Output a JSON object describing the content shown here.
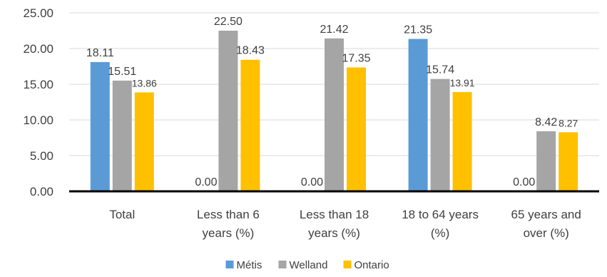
{
  "chart_data": {
    "type": "bar",
    "categories": [
      [
        "Total"
      ],
      [
        "Less than 6",
        "years (%)"
      ],
      [
        "Less than 18",
        "years (%)"
      ],
      [
        "18 to 64 years",
        "(%)"
      ],
      [
        "65 years and",
        "over (%)"
      ]
    ],
    "series": [
      {
        "name": "Métis",
        "color": "#5b9bd5",
        "values": [
          18.11,
          0,
          0,
          21.35,
          0
        ],
        "labels": [
          "18.11",
          "0.00",
          "0.00",
          "21.35",
          "0.00"
        ]
      },
      {
        "name": "Welland",
        "color": "#a5a5a5",
        "values": [
          15.51,
          22.5,
          21.42,
          15.74,
          8.42
        ],
        "labels": [
          "15.51",
          "22.50",
          "21.42",
          "15.74",
          "8.42"
        ]
      },
      {
        "name": "Ontario",
        "color": "#ffc000",
        "values": [
          13.86,
          18.43,
          17.35,
          13.91,
          8.27
        ],
        "labels": [
          "13.86",
          "18.43",
          "17.35",
          "13.91",
          "8.27"
        ]
      }
    ],
    "yticks": [
      "0.00",
      "5.00",
      "10.00",
      "15.00",
      "20.00",
      "25.00"
    ],
    "ylim": [
      0,
      25
    ],
    "grid": true,
    "legend": "bottom",
    "title": "",
    "xlabel": "",
    "ylabel": ""
  }
}
